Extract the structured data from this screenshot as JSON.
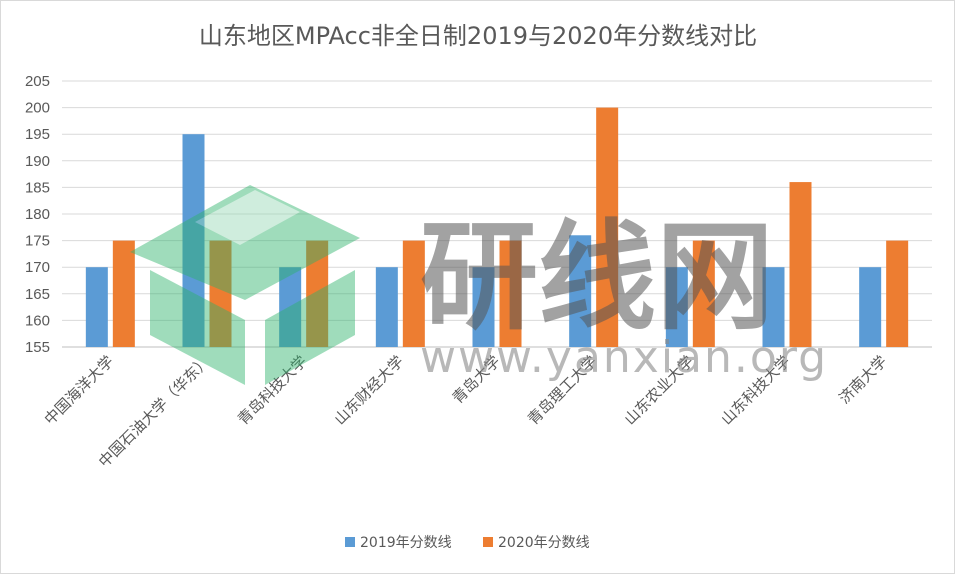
{
  "chart_data": {
    "type": "bar",
    "title": "山东地区MPAcc非全日制2019与2020年分数线对比",
    "categories": [
      "中国海洋大学",
      "中国石油大学（华东）",
      "青岛科技大学",
      "山东财经大学",
      "青岛大学",
      "青岛理工大学",
      "山东农业大学",
      "山东科技大学",
      "济南大学"
    ],
    "series": [
      {
        "name": "2019年分数线",
        "color": "#5b9bd5",
        "values": [
          170,
          195,
          170,
          170,
          170,
          176,
          170,
          170,
          170
        ]
      },
      {
        "name": "2020年分数线",
        "color": "#ed7d31",
        "values": [
          175,
          175,
          175,
          175,
          175,
          200,
          175,
          186,
          175
        ]
      }
    ],
    "ylim": [
      155,
      205
    ],
    "yticks": [
      155,
      160,
      165,
      170,
      175,
      180,
      185,
      190,
      195,
      200,
      205
    ],
    "grid": true,
    "legend": "bottom"
  },
  "watermark": {
    "text": "研线网",
    "url": "www.yanxian.org",
    "logo_color": "#2db36b"
  }
}
